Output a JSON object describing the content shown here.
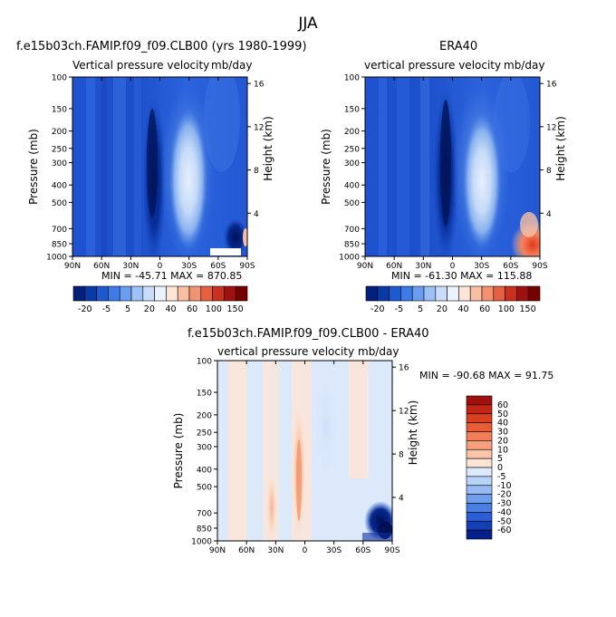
{
  "page": {
    "title": "JJA"
  },
  "panels": [
    {
      "id": "model",
      "title": "f.e15b03ch.FAMIP.f09_f09.CLB00 (yrs 1980-1999)",
      "left_label": "Vertical pressure velocity",
      "right_label": "mb/day",
      "stats": "MIN = -45.71   MAX = 870.85"
    },
    {
      "id": "era40",
      "title": "ERA40",
      "left_label": "vertical pressure velocity",
      "right_label": "mb/day",
      "stats": "MIN = -61.30   MAX = 115.88"
    },
    {
      "id": "diff",
      "title": "f.e15b03ch.FAMIP.f09_f09.CLB00 - ERA40",
      "left_label": "vertical pressure velocity",
      "right_label": "mb/day",
      "stats": "MIN = -90.68   MAX =  91.75"
    }
  ],
  "axes": {
    "ylabel": "Pressure (mb)",
    "ylabel_right": "Height (km)",
    "pressure_ticks": [
      "100",
      "150",
      "200",
      "250",
      "300",
      "400",
      "500",
      "700",
      "850",
      "1000"
    ],
    "height_ticks": [
      "16",
      "12",
      "8",
      "4"
    ],
    "lat_ticks": [
      "90N",
      "60N",
      "30N",
      "0",
      "30S",
      "60S",
      "90S"
    ]
  },
  "colorbars": {
    "top": {
      "labels": [
        "-20",
        "-5",
        "5",
        "20",
        "40",
        "60",
        "100",
        "150"
      ],
      "colors": [
        "#02207a",
        "#0a3aa8",
        "#1c5ad0",
        "#3d7ce8",
        "#6b9ef0",
        "#9dc0f6",
        "#cadcfa",
        "#eaf2fd",
        "#fde6d8",
        "#f7c0a2",
        "#f29270",
        "#e5603f",
        "#c9301e",
        "#a0100e",
        "#760000"
      ]
    },
    "diff": {
      "labels": [
        "60",
        "50",
        "40",
        "30",
        "20",
        "10",
        "5",
        "0",
        "-5",
        "-10",
        "-20",
        "-30",
        "-40",
        "-50",
        "-60"
      ],
      "colors": [
        "#a0100e",
        "#c22612",
        "#d8401e",
        "#ea5c36",
        "#f27e55",
        "#f7a07c",
        "#fbc4a8",
        "#fde5d6",
        "#dce9fb",
        "#b8d3f8",
        "#96bbf2",
        "#6f9eec",
        "#4a7fe3",
        "#2b5ed4",
        "#1540b4",
        "#05208a"
      ]
    }
  },
  "chart_data": [
    {
      "type": "heatmap",
      "title": "f.e15b03ch.FAMIP.f09_f09.CLB00 (yrs 1980-1999)",
      "variable": "Vertical pressure velocity",
      "units": "mb/day",
      "season": "JJA",
      "x": [
        "90N",
        "60N",
        "30N",
        "0",
        "30S",
        "60S",
        "90S"
      ],
      "y_pressure_mb": [
        100,
        150,
        200,
        250,
        300,
        400,
        500,
        700,
        850,
        1000
      ],
      "y_height_km": [
        16,
        12,
        8,
        4
      ],
      "min": -45.71,
      "max": 870.85,
      "levels": [
        -20,
        -15,
        -10,
        -5,
        0,
        5,
        10,
        15,
        20,
        30,
        40,
        50,
        60,
        80,
        100,
        150
      ]
    },
    {
      "type": "heatmap",
      "title": "ERA40",
      "variable": "vertical pressure velocity",
      "units": "mb/day",
      "season": "JJA",
      "x": [
        "90N",
        "60N",
        "30N",
        "0",
        "30S",
        "60S",
        "90S"
      ],
      "y_pressure_mb": [
        100,
        150,
        200,
        250,
        300,
        400,
        500,
        700,
        850,
        1000
      ],
      "y_height_km": [
        16,
        12,
        8,
        4
      ],
      "min": -61.3,
      "max": 115.88,
      "levels": [
        -20,
        -15,
        -10,
        -5,
        0,
        5,
        10,
        15,
        20,
        30,
        40,
        50,
        60,
        80,
        100,
        150
      ]
    },
    {
      "type": "heatmap",
      "title": "f.e15b03ch.FAMIP.f09_f09.CLB00 - ERA40",
      "variable": "vertical pressure velocity",
      "units": "mb/day",
      "season": "JJA",
      "x": [
        "90N",
        "60N",
        "30N",
        "0",
        "30S",
        "60S",
        "90S"
      ],
      "y_pressure_mb": [
        100,
        150,
        200,
        250,
        300,
        400,
        500,
        700,
        850,
        1000
      ],
      "y_height_km": [
        16,
        12,
        8,
        4
      ],
      "min": -90.68,
      "max": 91.75,
      "levels": [
        -60,
        -50,
        -40,
        -30,
        -20,
        -10,
        -5,
        0,
        5,
        10,
        20,
        30,
        40,
        50,
        60
      ]
    }
  ]
}
